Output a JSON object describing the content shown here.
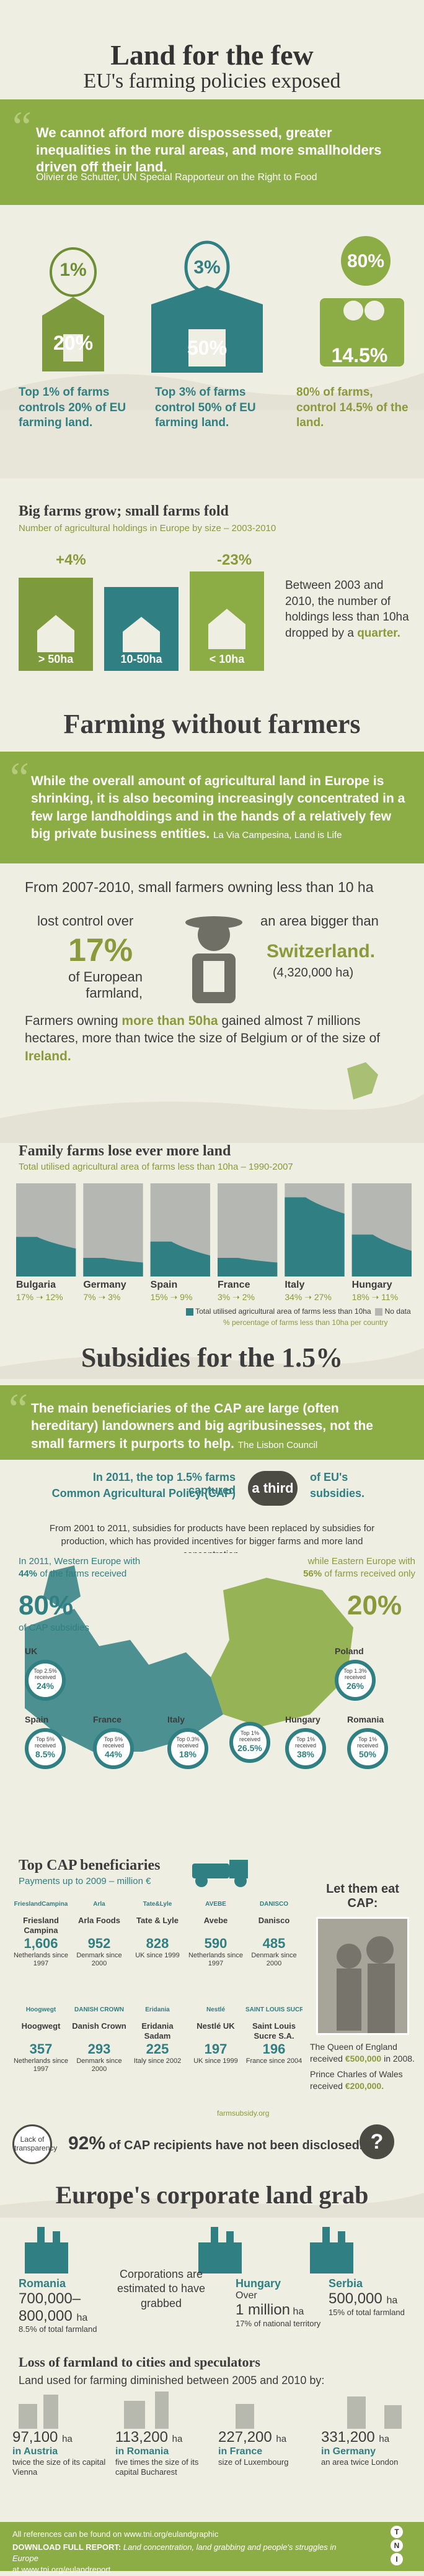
{
  "header": {
    "title": "Land for the few",
    "subtitle": "EU's farming policies exposed"
  },
  "quote1": {
    "text": "We cannot afford more dispossessed, greater inequalities in the rural areas, and more smallholders driven off their land.",
    "author": "Olivier de Schutter, UN Special Rapporteur on the Right to Food"
  },
  "concentration": [
    {
      "top": "1%",
      "bottom": "20%",
      "caption_a": "Top ",
      "caption_b": "1%",
      "caption_c": " of farms controls ",
      "caption_d": "20%",
      "caption_e": " of EU farming land."
    },
    {
      "top": "3%",
      "bottom": "50%",
      "caption_a": "Top ",
      "caption_b": "3%",
      "caption_c": " of farms control ",
      "caption_d": "50%",
      "caption_e": " of EU farming land."
    },
    {
      "top": "80%",
      "bottom": "14.5%",
      "caption_a": "",
      "caption_b": "80%",
      "caption_c": " of farms, control ",
      "caption_d": "14.5%",
      "caption_e": " of the land."
    }
  ],
  "big_farms": {
    "heading": "Big farms grow; small farms fold",
    "sub": "Number of agricultural holdings in Europe by size – 2003-2010",
    "change_big": "+4%",
    "change_small": "-23%",
    "labels": [
      "> 50ha",
      "10-50ha",
      "< 10ha"
    ],
    "note_a": "Between 2003 and 2010, the number of holdings less than 10ha dropped by a ",
    "note_b": "quarter."
  },
  "without_farmers": {
    "heading": "Farming without farmers",
    "quote": "While the overall amount of agricultural land in Europe is shrinking, it is also becoming increasingly concentrated in a few large landholdings and in the hands of a relatively few big private business entities.",
    "source": "La Via Campesina, Land is Life",
    "period": "From 2007-2010, small farmers owning less than 10 ha",
    "lost_a": "lost control over",
    "lost_pct": "17%",
    "lost_b": "of European farmland,",
    "area_a": "an area bigger than",
    "area_country": "Switzerland.",
    "area_ha": "(4,320,000 ha)",
    "gain_a": "Farmers owning ",
    "gain_b": "more than 50ha",
    "gain_c": " gained almost 7 millions hectares, more than twice the size of Belgium or of the size of ",
    "gain_d": "Ireland."
  },
  "family_farms": {
    "heading": "Family farms lose ever more land",
    "sub": "Total utilised agricultural area of farms less than 10ha – 1990-2007",
    "legend_area": "Total utilised agricultural area of farms less than 10ha",
    "legend_nodata": "No data",
    "legend_pct": "% percentage of farms less than 10ha per country"
  },
  "chart_data": {
    "type": "area",
    "categories": [
      "Bulgaria",
      "Germany",
      "Spain",
      "France",
      "Italy",
      "Hungary"
    ],
    "series": [
      {
        "name": "Total utilised agricultural area of farms less than 10ha",
        "start": [
          17,
          7,
          15,
          3,
          34,
          18
        ],
        "end": [
          12,
          3,
          9,
          2,
          27,
          11
        ]
      }
    ],
    "labels": [
      "17% ➝ 12%",
      "7% ➝ 3%",
      "15% ➝ 9%",
      "3% ➝ 2%",
      "34% ➝ 27%",
      "18% ➝ 11%"
    ],
    "legend": [
      "Total utilised agricultural area of farms less than 10ha",
      "No data",
      "% percentage of farms less than 10ha per country"
    ]
  },
  "subsidies": {
    "heading": "Subsidies for the 1.5%",
    "quote": "The main beneficiaries of the CAP are large (often hereditary) landowners and big agribusinesses, not the small farmers it purports to help.",
    "source": "The Lisbon Council",
    "third_a": "In 2011, the top 1.5% farms captured",
    "third_b": "Common Agricultural Policy (CAP)",
    "third_badge": "a third",
    "third_c": "of EU's",
    "third_d": "subsidies.",
    "since": "From 2001 to 2011, subsidies for products have been replaced by subsidies for production, which has provided incentives for bigger farms and more land concentration.",
    "west_a": "In 2011, Western Europe with ",
    "west_b": "44%",
    "west_c": " of the farms received",
    "west_pct": "80%",
    "west_d": "of CAP subsidies",
    "east_a": "while Eastern Europe with ",
    "east_b": "56%",
    "east_c": " of farms received only",
    "east_pct": "20%"
  },
  "countries": [
    {
      "name": "UK",
      "text": "Top 2.5% received",
      "pct": "24%"
    },
    {
      "name": "Poland",
      "text": "Top 1.3% received",
      "pct": "26%"
    },
    {
      "name": "Spain",
      "text": "Top 5% received",
      "pct": "8.5%"
    },
    {
      "name": "France",
      "text": "Top 5% received",
      "pct": "44%"
    },
    {
      "name": "Italy",
      "text": "Top 0.3% received",
      "pct": "18%"
    },
    {
      "name": "",
      "text": "Top 1% received",
      "pct": "26.5%"
    },
    {
      "name": "Hungary",
      "text": "Top 1% received",
      "pct": "38%"
    },
    {
      "name": "Romania",
      "text": "Top 1% received",
      "pct": "50%"
    }
  ],
  "beneficiaries": {
    "heading": "Top CAP beneficiaries",
    "sub": "Payments up to 2009 – million €",
    "items": [
      {
        "brand": "FrieslandCampina",
        "name": "Friesland Campina",
        "value": "1,606",
        "country": "Netherlands since 1997"
      },
      {
        "brand": "Arla",
        "name": "Arla Foods",
        "value": "952",
        "country": "Denmark since 2000"
      },
      {
        "brand": "Tate&Lyle",
        "name": "Tate & Lyle",
        "value": "828",
        "country": "UK since 1999"
      },
      {
        "brand": "AVEBE",
        "name": "Avebe",
        "value": "590",
        "country": "Netherlands since 1997"
      },
      {
        "brand": "DANISCO",
        "name": "Danisco",
        "value": "485",
        "country": "Denmark since 2000"
      },
      {
        "brand": "Hoogwegt",
        "name": "Hoogwegt",
        "value": "357",
        "country": "Netherlands since 1997"
      },
      {
        "brand": "DANISH CROWN",
        "name": "Danish Crown",
        "value": "293",
        "country": "Denmark since 2000"
      },
      {
        "brand": "Eridania",
        "name": "Eridania Sadam",
        "value": "225",
        "country": "Italy since 2002"
      },
      {
        "brand": "Nestlé",
        "name": "Nestlé UK",
        "value": "197",
        "country": "UK since 1999"
      },
      {
        "brand": "SAINT LOUIS SUCRE",
        "name": "Saint Louis Sucre S.A.",
        "value": "196",
        "country": "France since 2004"
      }
    ],
    "source": "farmsubsidy.org",
    "eat_title": "Let them eat CAP:",
    "queen_a": "The Queen of England received ",
    "queen_b": "€500,000",
    "queen_c": " in 2008.",
    "prince_a": "Prince Charles of Wales received ",
    "prince_b": "€200,000."
  },
  "transparency": {
    "badge": "Lack of transparency",
    "pct": "92%",
    "text": " of CAP recipients have not been disclosed."
  },
  "grab": {
    "heading": "Europe's corporate land grab",
    "romania_name": "Romania",
    "romania_value": "700,000– 800,000",
    "romania_unit": "ha",
    "romania_note": "8.5% of total farmland",
    "center_text": "Corporations are estimated to have grabbed",
    "hungary_name": "Hungary",
    "hungary_a": "Over",
    "hungary_value": "1 million",
    "hungary_unit": "ha",
    "hungary_note": "17% of national territory",
    "serbia_name": "Serbia",
    "serbia_value": "500,000",
    "serbia_unit": "ha",
    "serbia_note": "15% of total farmland"
  },
  "loss": {
    "heading": "Loss of farmland to cities and speculators",
    "sub": "Land used for farming diminished between 2005 and 2010 by:",
    "items": [
      {
        "value": "97,100",
        "unit": "ha",
        "country": "in Austria",
        "note": "twice the size of its capital Vienna"
      },
      {
        "value": "113,200",
        "unit": "ha",
        "country": "in Romania",
        "note": "five times the size of its capital Bucharest"
      },
      {
        "value": "227,200",
        "unit": "ha",
        "country": "in France",
        "note": "size of Luxembourg"
      },
      {
        "value": "331,200",
        "unit": "ha",
        "country": "in Germany",
        "note": "an area twice London"
      }
    ]
  },
  "footer": {
    "refs": "All references can be found on www.tni.org/eulandgraphic",
    "download_a": "DOWNLOAD FULL REPORT: ",
    "download_b": "Land concentration, land grabbing and people's struggles in Europe",
    "download_c": "at www.tni.org/eulandreport",
    "logo": [
      "T",
      "N",
      "I"
    ]
  },
  "colors": {
    "green": "#8cac46",
    "teal": "#2f7f83",
    "bg": "#efeee2",
    "olive": "#8a9a3a"
  }
}
